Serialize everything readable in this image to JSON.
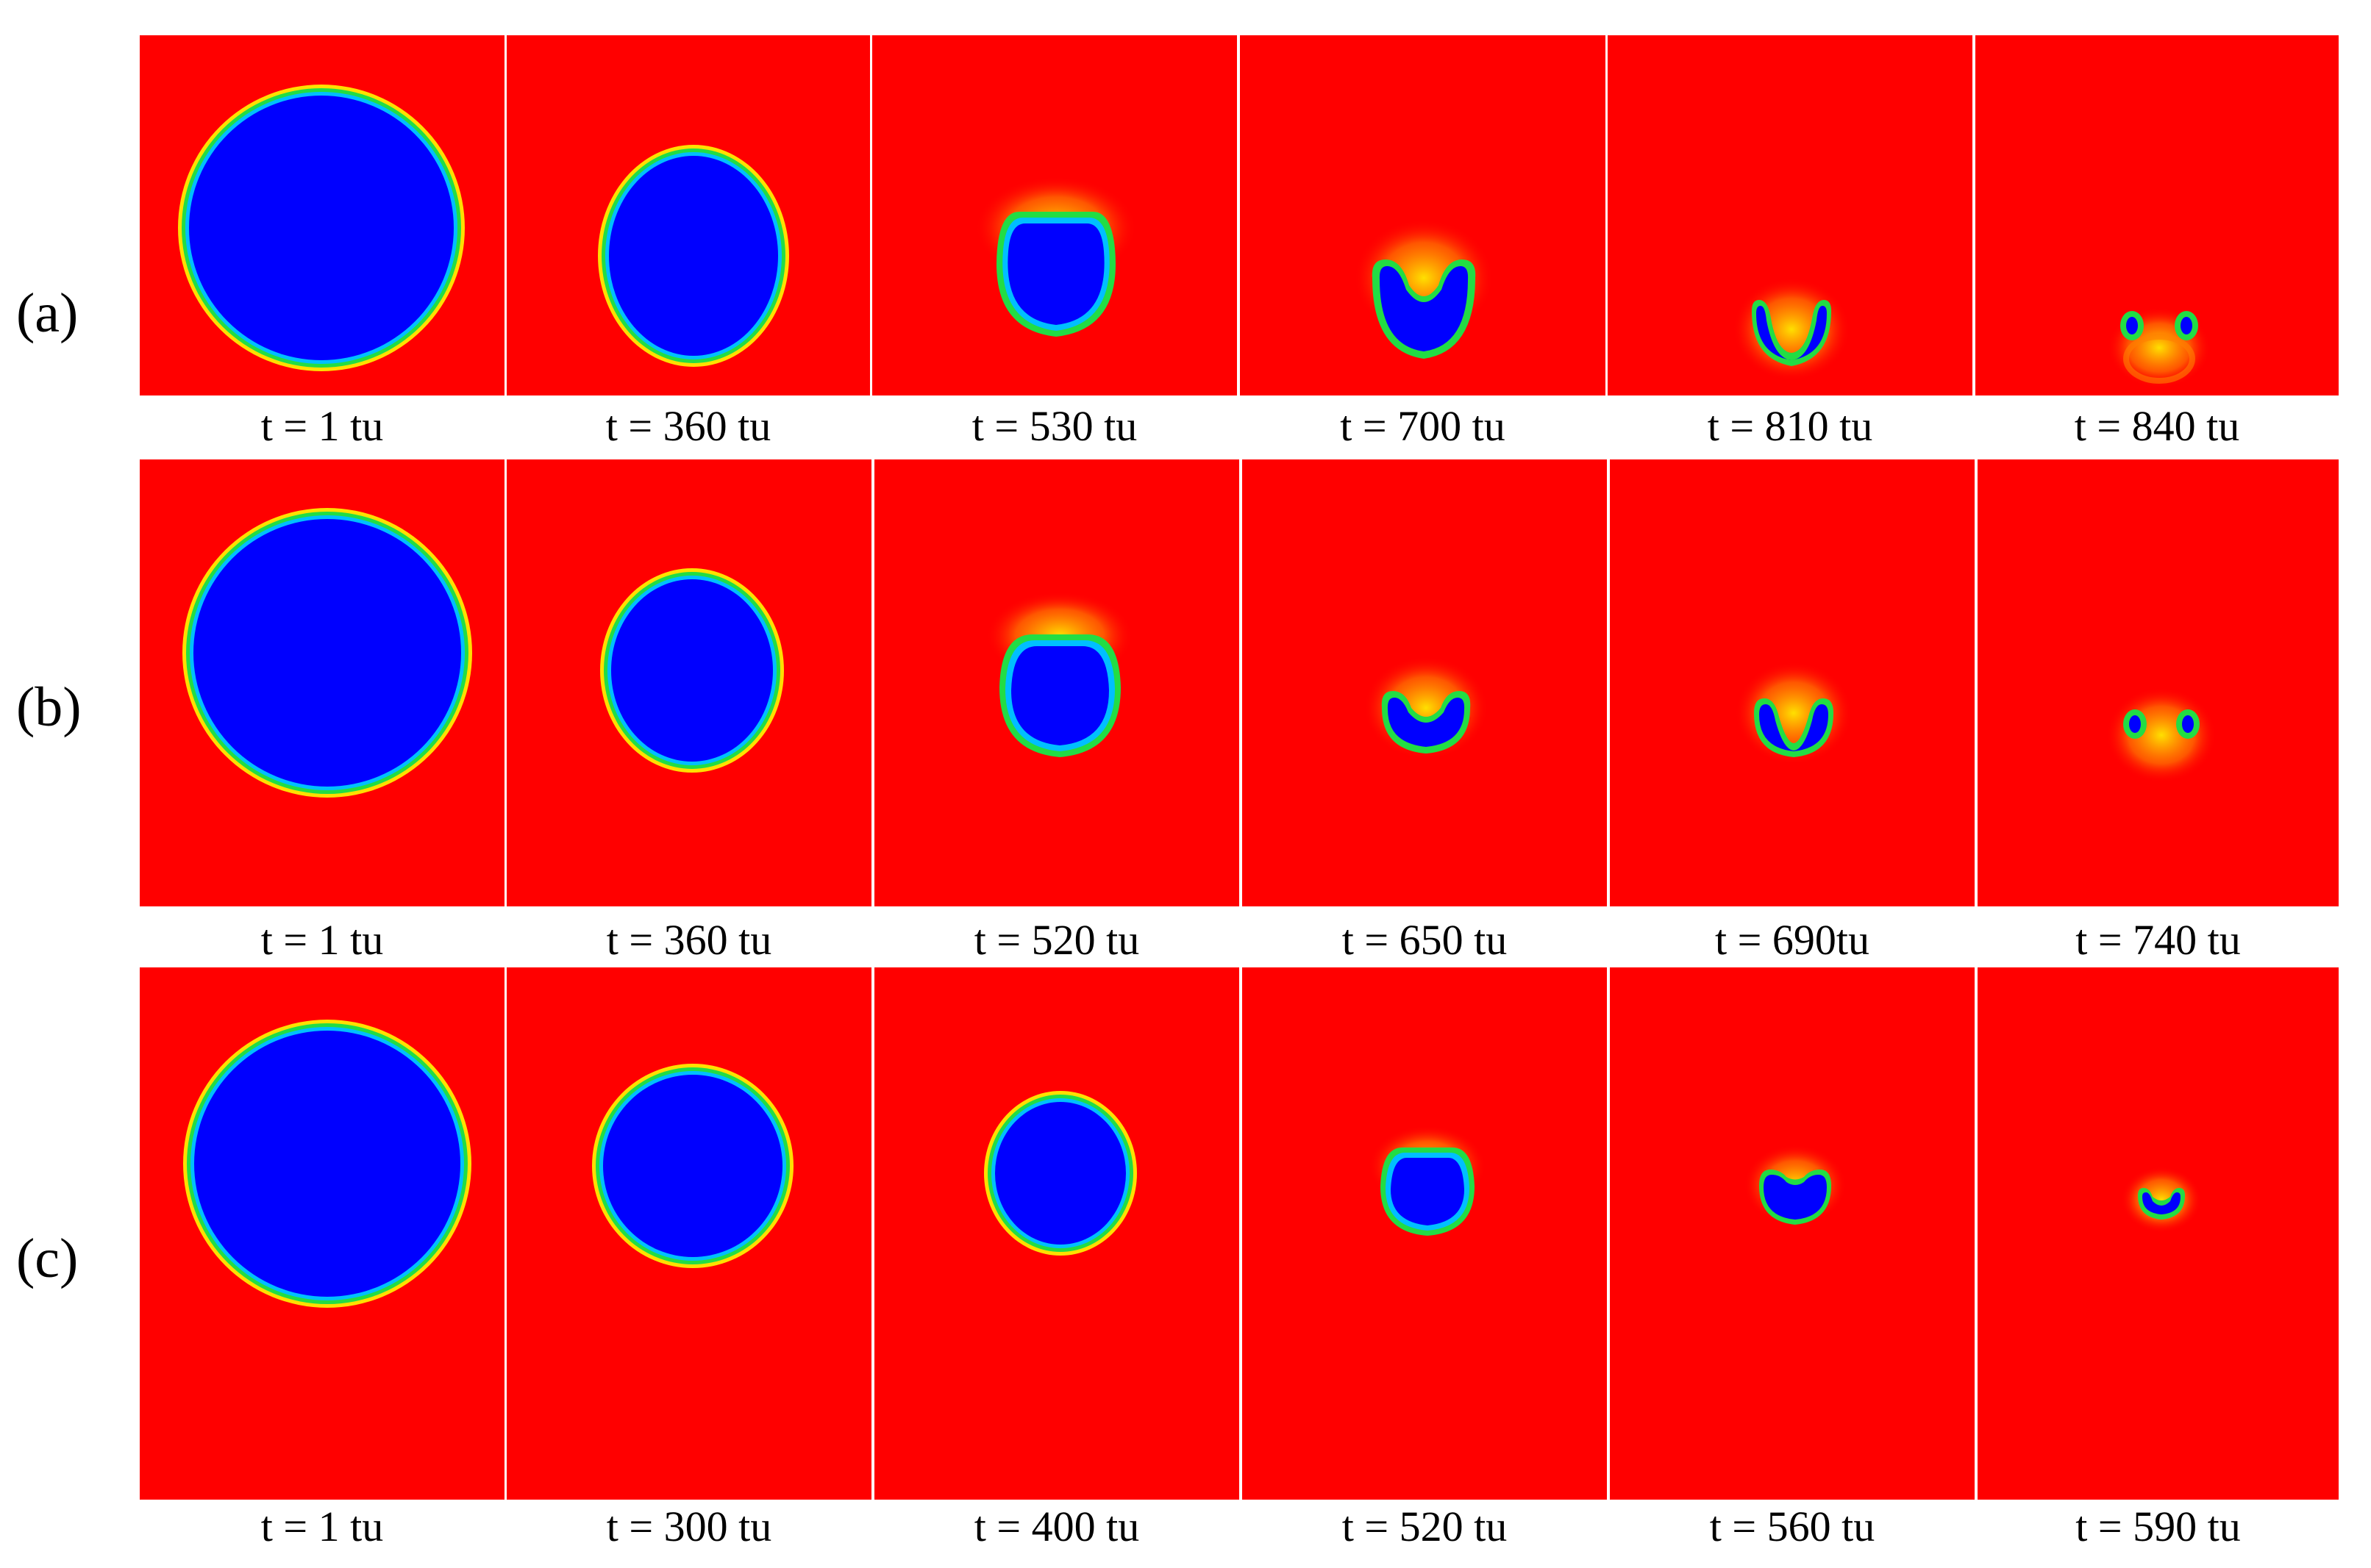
{
  "figure": {
    "rows": [
      {
        "label": "(a)",
        "captions": [
          "t = 1 tu",
          "t = 360 tu",
          "t = 530 tu",
          "t = 700 tu",
          "t = 810 tu",
          "t = 840 tu"
        ]
      },
      {
        "label": "(b)",
        "captions": [
          "t = 1 tu",
          "t = 360 tu",
          "t = 520 tu",
          "t = 650 tu",
          "t = 690tu",
          "t = 740 tu"
        ]
      },
      {
        "label": "(c)",
        "captions": [
          "t = 1 tu",
          "t = 300 tu",
          "t = 400 tu",
          "t = 520 tu",
          "t = 560 tu",
          "t = 590 tu"
        ]
      }
    ],
    "colors": {
      "background_phase": "#ff0000",
      "bubble_phase": "#0000ff",
      "interface_inner": "#00bfff",
      "interface_mid": "#22dd44",
      "interface_outer": "#ffe000"
    }
  }
}
